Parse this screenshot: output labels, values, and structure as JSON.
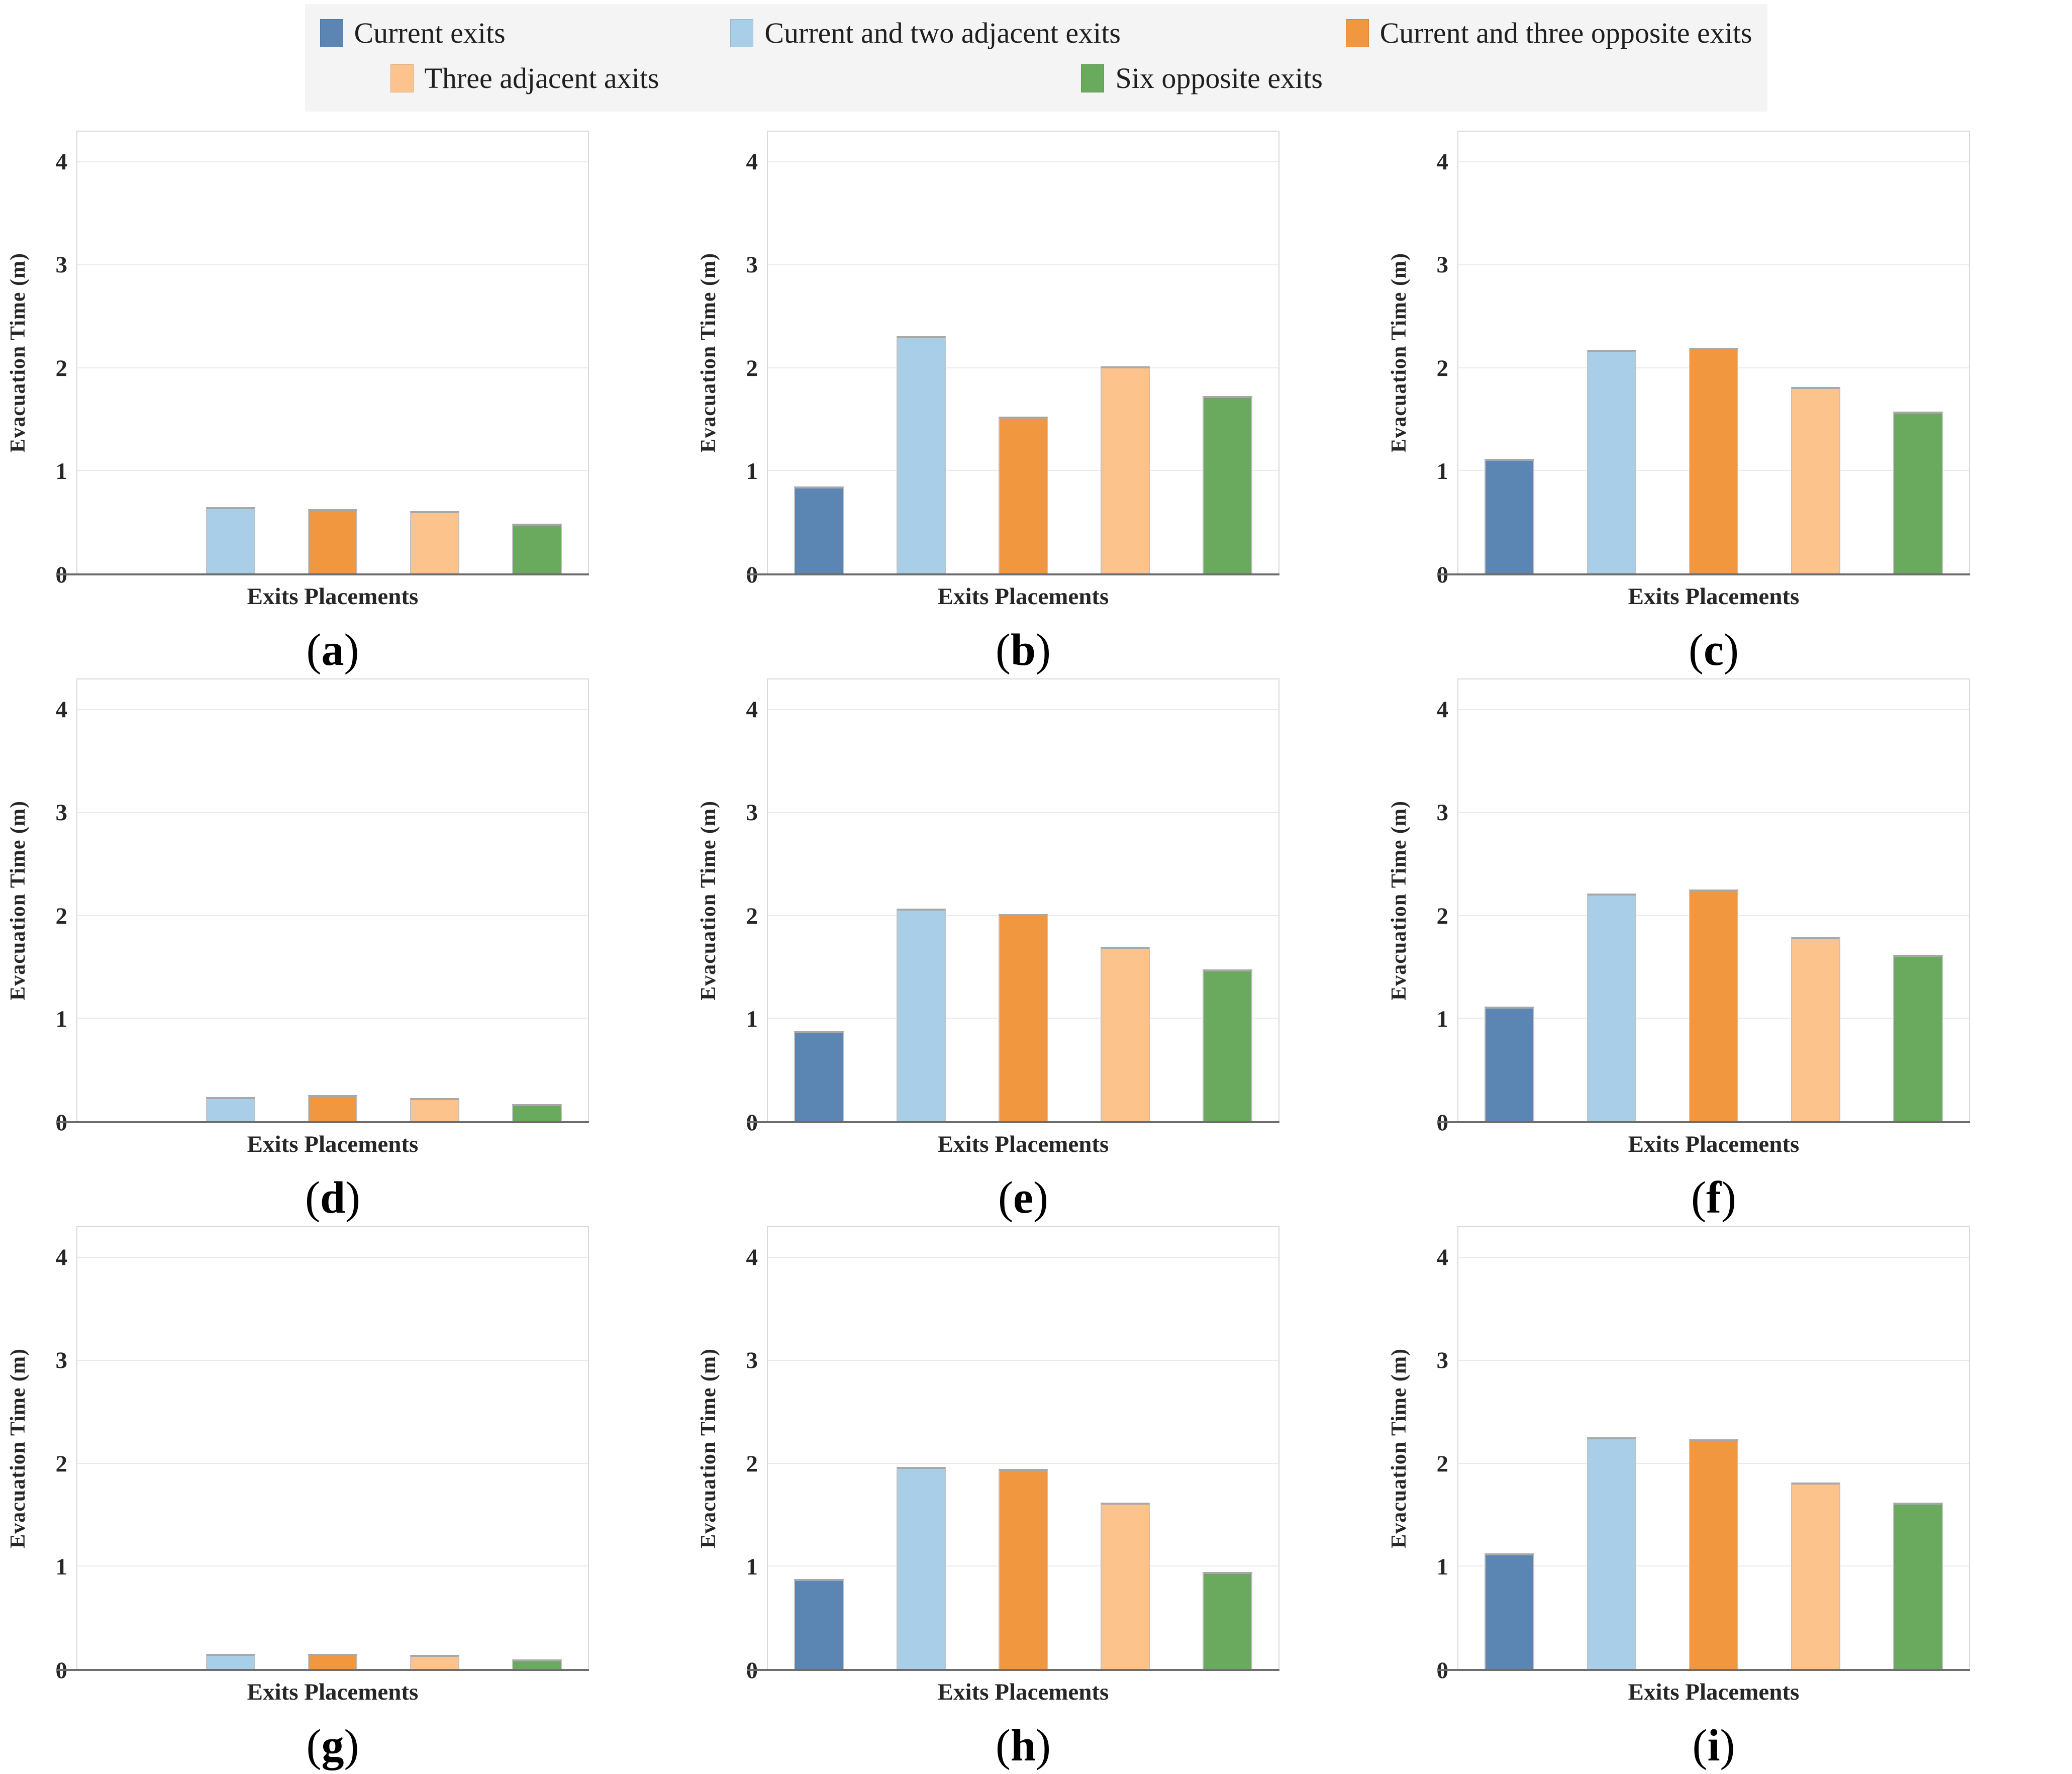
{
  "chart_data": {
    "type": "bar",
    "title": "",
    "xlabel": "Exits Placements",
    "ylabel": "Evacuation Time (m)",
    "yticks": [
      0,
      1,
      2,
      3,
      4
    ],
    "ylim": [
      0,
      4.3
    ],
    "grid": "horizontal",
    "legend_position": "top",
    "categories": [
      "Current exits",
      "Current and two adjacent exits",
      "Current and three opposite exits",
      "Three adjacent axits",
      "Six opposite exits"
    ],
    "colors": [
      "#5B86B3",
      "#A9CEE8",
      "#F0973F",
      "#FCC48C",
      "#69AA5E"
    ],
    "panel_label_wrap": [
      "(",
      ")"
    ],
    "panels": [
      {
        "label": "a",
        "values": [
          0,
          0.65,
          0.63,
          0.61,
          0.49
        ]
      },
      {
        "label": "b",
        "values": [
          0.85,
          2.31,
          1.53,
          2.02,
          1.73
        ]
      },
      {
        "label": "c",
        "values": [
          1.12,
          2.18,
          2.2,
          1.82,
          1.58
        ]
      },
      {
        "label": "d",
        "values": [
          0,
          0.24,
          0.26,
          0.23,
          0.17
        ]
      },
      {
        "label": "e",
        "values": [
          0.88,
          2.07,
          2.02,
          1.7,
          1.48
        ]
      },
      {
        "label": "f",
        "values": [
          1.12,
          2.22,
          2.26,
          1.8,
          1.62
        ]
      },
      {
        "label": "g",
        "values": [
          0,
          0.15,
          0.15,
          0.14,
          0.1
        ]
      },
      {
        "label": "h",
        "values": [
          0.88,
          1.97,
          1.95,
          1.62,
          0.95
        ]
      },
      {
        "label": "i",
        "values": [
          1.13,
          2.26,
          2.24,
          1.82,
          1.62
        ]
      }
    ]
  }
}
